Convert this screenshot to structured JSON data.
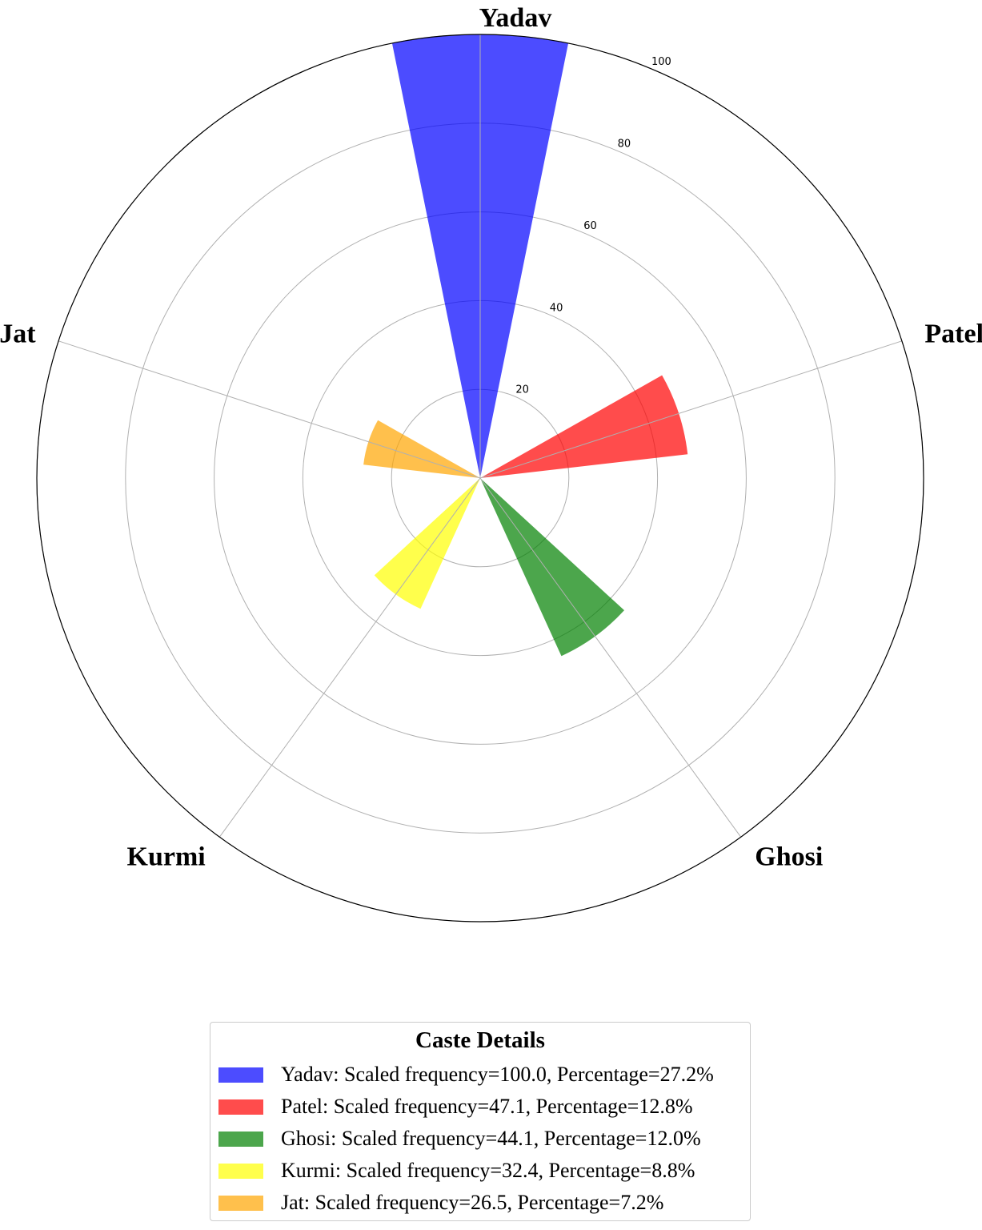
{
  "chart_data": {
    "type": "polar-bar",
    "categories": [
      "Yadav",
      "Patel",
      "Ghosi",
      "Kurmi",
      "Jat"
    ],
    "values": [
      100.0,
      47.1,
      44.1,
      32.4,
      26.5
    ],
    "colors": [
      "#0000ff",
      "#ff0000",
      "#008000",
      "#ffff00",
      "#ffa500"
    ],
    "alpha": 0.7,
    "radial_ticks": [
      "20",
      "40",
      "60",
      "80",
      "100"
    ],
    "rlim": [
      0,
      100
    ],
    "grid": true,
    "legend": {
      "title": "Caste Details",
      "placement": "bottom-center",
      "entries": [
        "Yadav: Scaled frequency=100.0, Percentage=27.2%",
        "Patel: Scaled frequency=47.1, Percentage=12.8%",
        "Ghosi: Scaled frequency=44.1, Percentage=12.0%",
        "Kurmi: Scaled frequency=32.4, Percentage=8.8%",
        "Jat: Scaled frequency=26.5, Percentage=7.2%"
      ]
    }
  }
}
